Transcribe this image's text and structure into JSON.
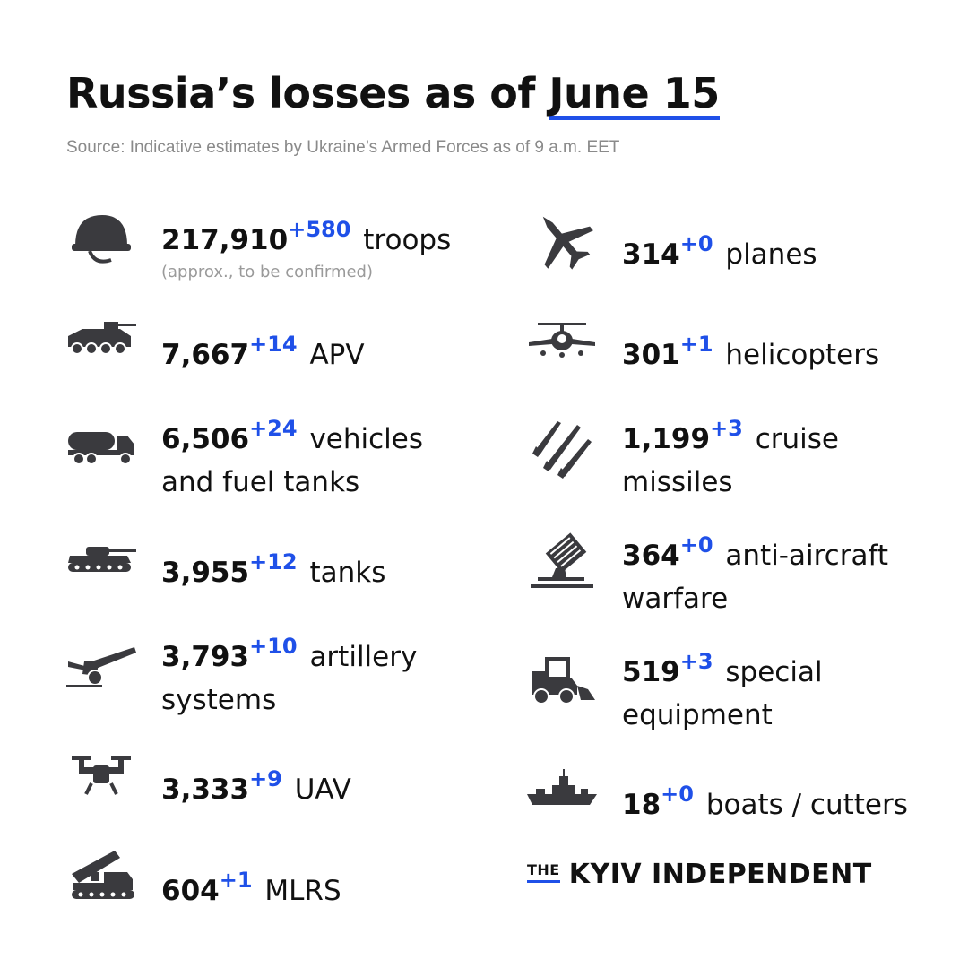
{
  "header": {
    "title_prefix": "Russia’s losses  as of",
    "title_date": "June 15",
    "source": "Source: Indicative estimates by Ukraine’s Armed Forces as of 9 a.m. EET"
  },
  "items_left": [
    {
      "icon": "helmet-icon",
      "value": "217,910",
      "delta": "+580",
      "label": "troops",
      "note": "(approx., to be confirmed)"
    },
    {
      "icon": "apv-icon",
      "value": "7,667",
      "delta": "+14",
      "label": "APV"
    },
    {
      "icon": "fuel-truck-icon",
      "value": "6,506",
      "delta": "+24",
      "label": "vehicles",
      "label2": "and fuel tanks"
    },
    {
      "icon": "tank-icon",
      "value": "3,955",
      "delta": "+12",
      "label": "tanks"
    },
    {
      "icon": "artillery-icon",
      "value": "3,793",
      "delta": "+10",
      "label": "artillery",
      "label2": "systems"
    },
    {
      "icon": "drone-icon",
      "value": "3,333",
      "delta": "+9",
      "label": "UAV"
    },
    {
      "icon": "mlrs-icon",
      "value": "604",
      "delta": "+1",
      "label": "MLRS"
    }
  ],
  "items_right": [
    {
      "icon": "plane-icon",
      "value": "314",
      "delta": "+0",
      "label": "planes"
    },
    {
      "icon": "helicopter-icon",
      "value": "301",
      "delta": "+1",
      "label": "helicopters"
    },
    {
      "icon": "missiles-icon",
      "value": "1,199",
      "delta": "+3",
      "label": "cruise",
      "label2": "missiles"
    },
    {
      "icon": "anti-aircraft-icon",
      "value": "364",
      "delta": "+0",
      "label": "anti-aircraft",
      "label2": "warfare"
    },
    {
      "icon": "special-equipment-icon",
      "value": "519",
      "delta": "+3",
      "label": "special",
      "label2": "equipment"
    },
    {
      "icon": "boat-icon",
      "value": "18",
      "delta": "+0",
      "label": "boats / cutters"
    }
  ],
  "branding": {
    "the": "THE",
    "name": "KYIV INDEPENDENT"
  },
  "colors": {
    "accent": "#1f50e8",
    "icon": "#3a3a3e",
    "text": "#111111"
  }
}
